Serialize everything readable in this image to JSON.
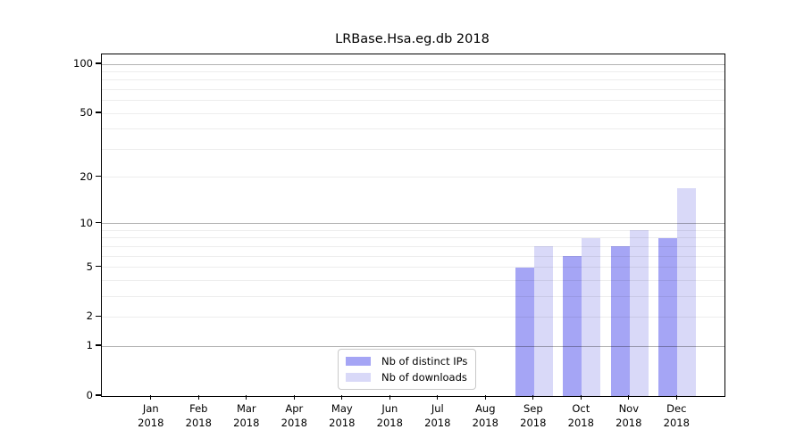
{
  "chart_data": {
    "type": "bar",
    "title": "LRBase.Hsa.eg.db 2018",
    "year_label": "2018",
    "categories": [
      "Jan",
      "Feb",
      "Mar",
      "Apr",
      "May",
      "Jun",
      "Jul",
      "Aug",
      "Sep",
      "Oct",
      "Nov",
      "Dec"
    ],
    "series": [
      {
        "name": "Nb of distinct IPs",
        "color": "#a5a5f5",
        "values": [
          0,
          0,
          0,
          0,
          0,
          0,
          0,
          0,
          5,
          6,
          7,
          8
        ]
      },
      {
        "name": "Nb of downloads",
        "color": "#d9d9f8",
        "values": [
          0,
          0,
          0,
          0,
          0,
          0,
          0,
          0,
          7,
          8,
          9,
          17
        ]
      }
    ],
    "y_axis": {
      "scale": "log1p",
      "tick_values": [
        0,
        1,
        2,
        5,
        10,
        20,
        50,
        100
      ],
      "major_gridlines": [
        1,
        10,
        100
      ],
      "minor_gridlines": [
        2,
        3,
        4,
        5,
        6,
        7,
        8,
        9,
        20,
        30,
        40,
        50,
        60,
        70,
        80,
        90
      ],
      "ylim": [
        0,
        113.5
      ]
    },
    "legend_position": "inside lower-center",
    "grid": true
  },
  "colors": {
    "background": "#ffffff",
    "axis": "#000000",
    "text": "#000000",
    "major_grid": "#b3b3b3",
    "minor_grid": "#ededed",
    "legend_border": "#c9c9c9"
  }
}
